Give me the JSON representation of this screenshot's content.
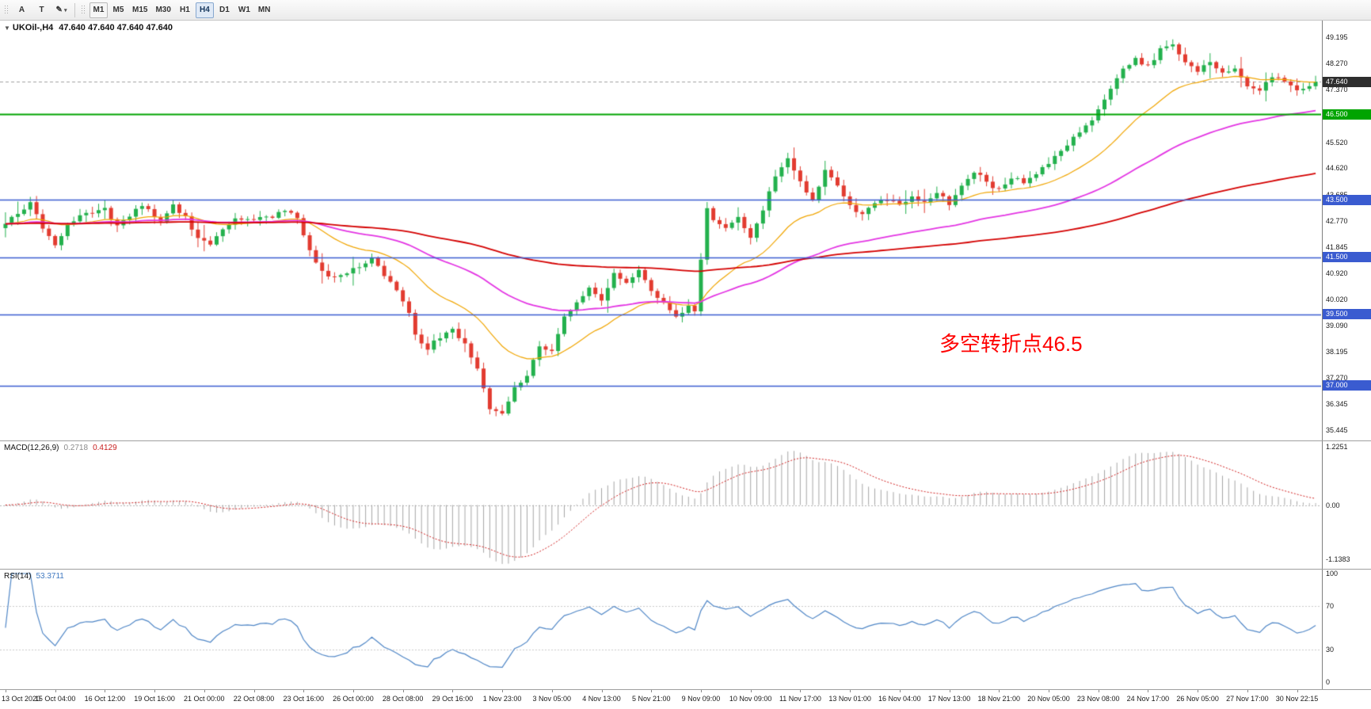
{
  "icons": {
    "collapse": "▼"
  },
  "toolbar": {
    "tools": [
      {
        "name": "arrow-tool",
        "glyph": "A"
      },
      {
        "name": "text-tool",
        "glyph": "T"
      },
      {
        "name": "draw-tool",
        "glyph": "✎",
        "dropdown": "▾"
      }
    ],
    "timeframes": [
      "M1",
      "M5",
      "M15",
      "M30",
      "H1",
      "H4",
      "D1",
      "W1",
      "MN"
    ],
    "active_timeframe": "H4",
    "boxed_timeframe": "M1"
  },
  "chart": {
    "title": "UKOil-,H4",
    "quote": "47.640 47.640 47.640 47.640",
    "annotation": {
      "text": "多空转折点46.5",
      "color": "#ff0000"
    },
    "y_labels": [
      "49.195",
      "48.270",
      "47.370",
      "45.520",
      "44.620",
      "43.685",
      "42.770",
      "41.845",
      "40.920",
      "40.020",
      "39.090",
      "38.195",
      "37.270",
      "36.345",
      "35.445"
    ],
    "tags": [
      {
        "label": "47.640",
        "value": 47.64,
        "bg": "#2e2e2e"
      },
      {
        "label": "46.500",
        "value": 46.5,
        "bg": "#00a400"
      },
      {
        "label": "43.500",
        "value": 43.5,
        "bg": "#3a5bd0"
      },
      {
        "label": "41.500",
        "value": 41.5,
        "bg": "#3a5bd0"
      },
      {
        "label": "39.500",
        "value": 39.5,
        "bg": "#3a5bd0"
      },
      {
        "label": "37.000",
        "value": 37.0,
        "bg": "#3a5bd0"
      }
    ]
  },
  "macd": {
    "name": "MACD(12,26,9)",
    "value_main": "0.2718",
    "value_signal": "0.4129",
    "y_labels": [
      "1.2251",
      "0.00",
      "-1.1383"
    ]
  },
  "rsi": {
    "name": "RSI(14)",
    "value": "53.3711",
    "levels": [
      "100",
      "70",
      "30",
      "0"
    ]
  },
  "time_axis": [
    "13 Oct 2020",
    "15 Oct 04:00",
    "16 Oct 12:00",
    "19 Oct 16:00",
    "21 Oct 00:00",
    "22 Oct 08:00",
    "23 Oct 16:00",
    "26 Oct 00:00",
    "28 Oct 08:00",
    "29 Oct 16:00",
    "1 Nov 23:00",
    "3 Nov 05:00",
    "4 Nov 13:00",
    "5 Nov 21:00",
    "9 Nov 09:00",
    "10 Nov 09:00",
    "11 Nov 17:00",
    "13 Nov 01:00",
    "16 Nov 04:00",
    "17 Nov 13:00",
    "18 Nov 21:00",
    "20 Nov 05:00",
    "23 Nov 08:00",
    "24 Nov 17:00",
    "26 Nov 05:00",
    "27 Nov 17:00",
    "30 Nov 22:15"
  ],
  "chart_data": {
    "type": "candlestick",
    "symbol": "UKOil-",
    "timeframe": "H4",
    "last_price": 47.64,
    "ohlc_display": [
      47.64,
      47.64,
      47.64,
      47.64
    ],
    "y_range": [
      35.08,
      49.78
    ],
    "num_candles": 212,
    "label_step": 8,
    "bid_line": 47.64,
    "price_waypoints": [
      [
        0,
        42.7
      ],
      [
        2,
        43.0
      ],
      [
        4,
        43.45
      ],
      [
        6,
        42.55
      ],
      [
        8,
        41.95
      ],
      [
        10,
        42.65
      ],
      [
        13,
        43.05
      ],
      [
        16,
        43.15
      ],
      [
        18,
        42.6
      ],
      [
        20,
        42.95
      ],
      [
        22,
        43.3
      ],
      [
        25,
        42.75
      ],
      [
        27,
        43.35
      ],
      [
        29,
        42.9
      ],
      [
        31,
        42.15
      ],
      [
        33,
        41.95
      ],
      [
        35,
        42.45
      ],
      [
        37,
        42.85
      ],
      [
        40,
        42.8
      ],
      [
        43,
        42.95
      ],
      [
        45,
        43.15
      ],
      [
        47,
        42.8
      ],
      [
        49,
        41.7
      ],
      [
        51,
        41.05
      ],
      [
        53,
        40.75
      ],
      [
        55,
        40.95
      ],
      [
        57,
        41.15
      ],
      [
        59,
        41.45
      ],
      [
        61,
        40.9
      ],
      [
        63,
        40.35
      ],
      [
        65,
        39.55
      ],
      [
        66,
        38.8
      ],
      [
        68,
        38.3
      ],
      [
        70,
        38.7
      ],
      [
        72,
        38.95
      ],
      [
        74,
        38.45
      ],
      [
        76,
        37.55
      ],
      [
        78,
        36.25
      ],
      [
        80,
        35.95
      ],
      [
        82,
        36.9
      ],
      [
        84,
        37.3
      ],
      [
        86,
        38.45
      ],
      [
        88,
        38.2
      ],
      [
        90,
        39.35
      ],
      [
        92,
        39.95
      ],
      [
        94,
        40.45
      ],
      [
        96,
        39.95
      ],
      [
        98,
        40.9
      ],
      [
        100,
        40.6
      ],
      [
        102,
        41.05
      ],
      [
        104,
        40.3
      ],
      [
        106,
        39.9
      ],
      [
        108,
        39.35
      ],
      [
        110,
        39.75
      ],
      [
        111,
        39.6
      ],
      [
        112,
        41.4
      ],
      [
        113,
        43.25
      ],
      [
        114,
        42.8
      ],
      [
        116,
        42.45
      ],
      [
        118,
        42.95
      ],
      [
        120,
        42.15
      ],
      [
        122,
        43.15
      ],
      [
        124,
        44.4
      ],
      [
        126,
        45.0
      ],
      [
        128,
        44.15
      ],
      [
        130,
        43.45
      ],
      [
        132,
        44.55
      ],
      [
        134,
        43.95
      ],
      [
        136,
        43.35
      ],
      [
        138,
        42.95
      ],
      [
        140,
        43.4
      ],
      [
        142,
        43.5
      ],
      [
        144,
        43.3
      ],
      [
        146,
        43.65
      ],
      [
        148,
        43.4
      ],
      [
        150,
        43.75
      ],
      [
        152,
        43.35
      ],
      [
        154,
        44.05
      ],
      [
        156,
        44.5
      ],
      [
        158,
        44.1
      ],
      [
        160,
        43.85
      ],
      [
        162,
        44.3
      ],
      [
        164,
        44.15
      ],
      [
        166,
        44.45
      ],
      [
        168,
        44.75
      ],
      [
        170,
        45.2
      ],
      [
        172,
        45.65
      ],
      [
        174,
        46.1
      ],
      [
        176,
        46.6
      ],
      [
        178,
        47.4
      ],
      [
        180,
        48.1
      ],
      [
        182,
        48.45
      ],
      [
        184,
        48.15
      ],
      [
        186,
        48.75
      ],
      [
        188,
        48.95
      ],
      [
        190,
        48.25
      ],
      [
        192,
        48.0
      ],
      [
        194,
        48.35
      ],
      [
        196,
        47.95
      ],
      [
        198,
        48.1
      ],
      [
        200,
        47.45
      ],
      [
        202,
        47.4
      ],
      [
        204,
        47.85
      ],
      [
        206,
        47.6
      ],
      [
        208,
        47.3
      ],
      [
        210,
        47.55
      ],
      [
        211,
        47.64
      ]
    ],
    "moving_averages": [
      {
        "period": 21,
        "color": "#f0a500",
        "width": 1.2
      },
      {
        "period": 60,
        "color": "#e335e3",
        "width": 1.8
      },
      {
        "period": 170,
        "color": "#d40000",
        "width": 1.8
      }
    ],
    "horizontal_lines": [
      {
        "price": 46.5,
        "color": "#00a400",
        "width": 2
      },
      {
        "price": 43.5,
        "color": "#3a5bd0",
        "width": 1.6
      },
      {
        "price": 41.5,
        "color": "#3a5bd0",
        "width": 1.6
      },
      {
        "price": 39.5,
        "color": "#3a5bd0",
        "width": 1.6
      },
      {
        "price": 37.0,
        "color": "#3a5bd0",
        "width": 1.6
      }
    ],
    "indicators": [
      {
        "name": "MACD",
        "params": [
          12,
          26,
          9
        ],
        "main": 0.2718,
        "signal": 0.4129,
        "axis_labels": [
          1.2251,
          0.0,
          -1.1383
        ]
      },
      {
        "name": "RSI",
        "params": [
          14
        ],
        "value": 53.3711,
        "levels": [
          100,
          70,
          30,
          0
        ]
      }
    ],
    "colors": {
      "up": "#23b14d",
      "down": "#e23b30",
      "macd_hist": "#a6a6a6",
      "macd_signal": "#d02020",
      "rsi_line": "#4f86c6",
      "bid_line": "#a0a0a0"
    }
  }
}
